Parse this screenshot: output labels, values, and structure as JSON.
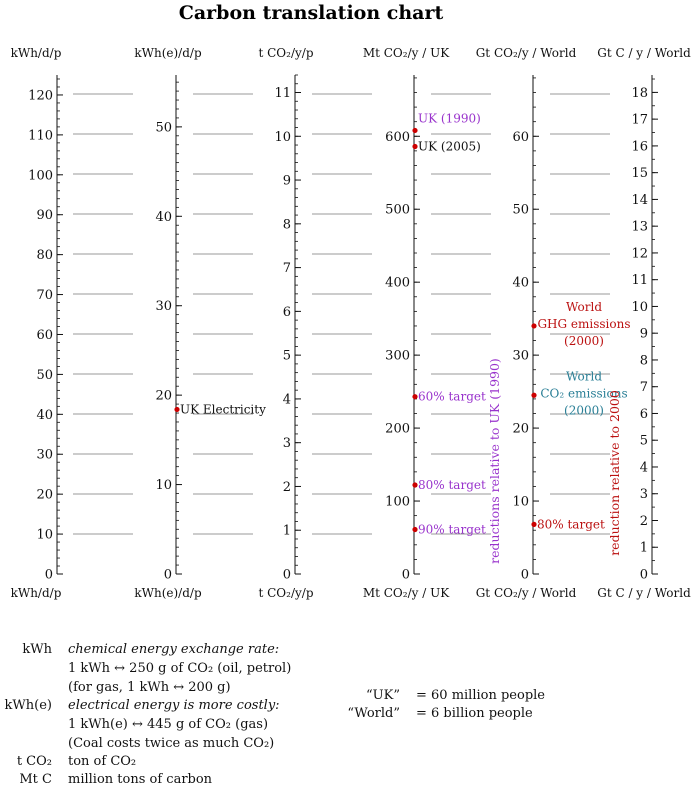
{
  "title": "Carbon translation chart",
  "axes": [
    {
      "id": "kwh",
      "label_top": "kWh/d/p",
      "label_bottom": "kWh/d/p",
      "min": 0,
      "max": 125,
      "ticks": [
        0,
        10,
        20,
        30,
        40,
        50,
        60,
        70,
        80,
        90,
        100,
        110,
        120
      ],
      "minor": 2
    },
    {
      "id": "kwhe",
      "label_top": "kWh(e)/d/p",
      "label_bottom": "kWh(e)/d/p",
      "min": 0,
      "max": 55.8,
      "ticks": [
        0,
        10,
        20,
        30,
        40,
        50
      ],
      "minor": 1
    },
    {
      "id": "tco2",
      "label_top": "t CO₂/y/p",
      "label_bottom": "t CO₂/y/p",
      "min": 0,
      "max": 11.4,
      "ticks": [
        0,
        1,
        2,
        3,
        4,
        5,
        6,
        7,
        8,
        9,
        10,
        11
      ],
      "minor": 0.2
    },
    {
      "id": "mtco2",
      "label_top": "Mt CO₂/y / UK",
      "label_bottom": "Mt CO₂/y / UK",
      "min": 0,
      "max": 684,
      "ticks": [
        0,
        100,
        200,
        300,
        400,
        500,
        600
      ],
      "minor": 20
    },
    {
      "id": "gtco2",
      "label_top": "Gt CO₂/y / World",
      "label_bottom": "Gt CO₂/y / World",
      "min": 0,
      "max": 68.4,
      "ticks": [
        0,
        10,
        20,
        30,
        40,
        50,
        60
      ],
      "minor": 2
    },
    {
      "id": "gtc",
      "label_top": "Gt C / y / World",
      "label_bottom": "Gt C / y / World",
      "min": 0,
      "max": 18.65,
      "ticks": [
        0,
        1,
        2,
        3,
        4,
        5,
        6,
        7,
        8,
        9,
        10,
        11,
        12,
        13,
        14,
        15,
        16,
        17,
        18
      ],
      "minor": 0.5
    }
  ],
  "annotations": [
    {
      "axis": "kwhe",
      "value": 18.4,
      "label": [
        "UK Electricity"
      ],
      "color": "#111111"
    },
    {
      "axis": "mtco2",
      "value": 608,
      "label": [
        "UK (1990)"
      ],
      "color": "#9933cc"
    },
    {
      "axis": "mtco2",
      "value": 586,
      "label": [
        "UK (2005)"
      ],
      "color": "#111111"
    },
    {
      "axis": "mtco2",
      "value": 243,
      "label": [
        "60% target"
      ],
      "color": "#9933cc"
    },
    {
      "axis": "mtco2",
      "value": 122,
      "label": [
        "80% target"
      ],
      "color": "#9933cc"
    },
    {
      "axis": "mtco2",
      "value": 61,
      "label": [
        "90% target"
      ],
      "color": "#9933cc"
    },
    {
      "axis": "gtco2",
      "value": 34,
      "label": [
        "World",
        "GHG emissions",
        "(2000)"
      ],
      "color": "#bb1111"
    },
    {
      "axis": "gtco2",
      "value": 24.5,
      "label": [
        "World",
        "CO₂ emissions",
        "(2000)"
      ],
      "color": "#2a7f96"
    },
    {
      "axis": "gtco2",
      "value": 6.8,
      "label": [
        "80% target"
      ],
      "color": "#bb1111"
    }
  ],
  "rotated_labels": [
    {
      "text": "reductions relative to UK (1990)",
      "color": "#9933cc"
    },
    {
      "text": "reduction relative to 2000",
      "color": "#bb1111"
    }
  ],
  "legend": [
    {
      "key": "kWh",
      "lines": [
        "chemical energy exchange rate:",
        "1 kWh ↔ 250 g of CO₂ (oil, petrol)",
        "(for gas, 1 kWh ↔ 200 g)"
      ]
    },
    {
      "key": "kWh(e)",
      "lines": [
        "electrical energy is more costly:",
        "1 kWh(e) ↔ 445 g of CO₂ (gas)",
        "(Coal costs twice as much CO₂)"
      ]
    },
    {
      "key": "t CO₂",
      "lines": [
        "ton of CO₂"
      ]
    },
    {
      "key": "Mt C",
      "lines": [
        "million tons of carbon"
      ]
    }
  ],
  "people": [
    {
      "name": "“UK”",
      "value": "= 60 million people"
    },
    {
      "name": "“World”",
      "value": "= 6 billion people"
    }
  ]
}
